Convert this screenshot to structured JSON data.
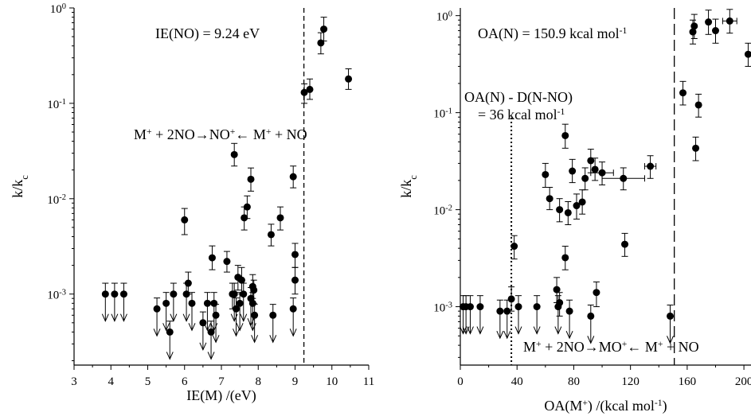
{
  "chart_data": [
    {
      "type": "scatter",
      "xlabel": "IE(M) /(eV)",
      "ylabel": "k/k",
      "ylabel_sub": "c",
      "yscale": "log",
      "xlim": [
        3,
        11
      ],
      "ylim": [
        0.00018,
        1
      ],
      "xticks": [
        3,
        4,
        5,
        6,
        7,
        8,
        9,
        10,
        11
      ],
      "xtick_labels": [
        "3",
        "4",
        "5",
        "6",
        "7",
        "8",
        "9",
        "10",
        "11"
      ],
      "yticks": [
        0.001,
        0.01,
        0.1,
        1
      ],
      "ytick_labels": [
        {
          "base": "10",
          "exp": "-3"
        },
        {
          "base": "10",
          "exp": "-2"
        },
        {
          "base": "10",
          "exp": "-1"
        },
        {
          "base": "10",
          "exp": "0"
        }
      ],
      "vlines": [
        {
          "x": 9.24,
          "style": "dashed"
        }
      ],
      "annotations": {
        "ie_no": "IE(NO) = 9.24 eV",
        "reaction": {
          "parts": [
            "M",
            "+",
            " + 2NO→NO",
            "+",
            "← M",
            "+",
            " + NO"
          ]
        }
      },
      "points": [
        {
          "x": 7.35,
          "y": 0.029,
          "yerr": [
            0.007,
            0.009
          ]
        },
        {
          "x": 7.8,
          "y": 0.016,
          "yerr": [
            0.004,
            0.005
          ]
        },
        {
          "x": 8.95,
          "y": 0.017,
          "yerr": [
            0.004,
            0.005
          ]
        },
        {
          "x": 7.7,
          "y": 0.0082,
          "yerr": [
            0.002,
            0.0025
          ]
        },
        {
          "x": 7.62,
          "y": 0.0063,
          "yerr": [
            0.0016,
            0.0019
          ]
        },
        {
          "x": 8.6,
          "y": 0.0063,
          "yerr": [
            0.0016,
            0.0019
          ]
        },
        {
          "x": 6.0,
          "y": 0.006,
          "yerr": [
            0.0018,
            0.0019
          ]
        },
        {
          "x": 8.35,
          "y": 0.0042,
          "yerr": [
            0.001,
            0.0012
          ]
        },
        {
          "x": 9.0,
          "y": 0.0026,
          "yerr": [
            0.0007,
            0.0008
          ]
        },
        {
          "x": 6.75,
          "y": 0.0024,
          "yerr": [
            0.0006,
            0.0008
          ]
        },
        {
          "x": 7.15,
          "y": 0.0022,
          "yerr": [
            0.0005,
            0.0006
          ]
        },
        {
          "x": 7.45,
          "y": 0.0015,
          "yerr": [
            0.0004,
            0.0005
          ]
        },
        {
          "x": 7.55,
          "y": 0.0014,
          "yerr": [
            0.0004,
            0.0005
          ]
        },
        {
          "x": 9.0,
          "y": 0.0014,
          "yerr": [
            0.0004,
            0.0005
          ]
        },
        {
          "x": 6.1,
          "y": 0.0013,
          "yerr": [
            0.0003,
            0.0004
          ]
        },
        {
          "x": 7.85,
          "y": 0.0012,
          "yerr": [
            0.0003,
            0.0004
          ]
        },
        {
          "x": 7.88,
          "y": 0.0011,
          "yerr": [
            0.0003,
            0.0003
          ]
        },
        {
          "x": 7.3,
          "y": 0.001,
          "yerr": [
            0.0003,
            0.0003
          ]
        },
        {
          "x": 9.25,
          "y": 0.13,
          "yerr": [
            0.03,
            0.03
          ]
        },
        {
          "x": 9.4,
          "y": 0.14,
          "yerr": [
            0.03,
            0.04
          ]
        },
        {
          "x": 9.7,
          "y": 0.43,
          "yerr": [
            0.1,
            0.12
          ]
        },
        {
          "x": 9.78,
          "y": 0.6,
          "yerr": [
            0.15,
            0.2
          ]
        },
        {
          "x": 10.45,
          "y": 0.18,
          "yerr": [
            0.04,
            0.05
          ]
        }
      ],
      "upper_limits": [
        {
          "x": 3.85,
          "y": 0.001
        },
        {
          "x": 4.1,
          "y": 0.001
        },
        {
          "x": 4.35,
          "y": 0.001
        },
        {
          "x": 5.25,
          "y": 0.0007
        },
        {
          "x": 5.5,
          "y": 0.0008
        },
        {
          "x": 5.6,
          "y": 0.0004
        },
        {
          "x": 5.7,
          "y": 0.001
        },
        {
          "x": 6.05,
          "y": 0.001
        },
        {
          "x": 6.2,
          "y": 0.0008
        },
        {
          "x": 6.5,
          "y": 0.0005
        },
        {
          "x": 6.62,
          "y": 0.0008
        },
        {
          "x": 6.72,
          "y": 0.0004
        },
        {
          "x": 6.8,
          "y": 0.0008
        },
        {
          "x": 6.85,
          "y": 0.0006
        },
        {
          "x": 7.35,
          "y": 0.001
        },
        {
          "x": 7.4,
          "y": 0.0007
        },
        {
          "x": 7.5,
          "y": 0.0008
        },
        {
          "x": 7.6,
          "y": 0.001
        },
        {
          "x": 7.8,
          "y": 0.0009
        },
        {
          "x": 7.85,
          "y": 0.0008
        },
        {
          "x": 7.9,
          "y": 0.0006
        },
        {
          "x": 8.4,
          "y": 0.0006
        },
        {
          "x": 8.95,
          "y": 0.0007
        }
      ]
    },
    {
      "type": "scatter",
      "xlabel": "OA(M",
      "xlabel_parts": [
        "OA(M",
        "+",
        ") /(kcal mol",
        "-1",
        ")"
      ],
      "ylabel": "k/k",
      "ylabel_sub": "c",
      "yscale": "log",
      "xlim": [
        0,
        205
      ],
      "ylim": [
        0.00025,
        1.2
      ],
      "xticks": [
        0,
        40,
        80,
        120,
        160,
        200
      ],
      "xtick_labels": [
        "0",
        "40",
        "80",
        "120",
        "160",
        "200"
      ],
      "yticks": [
        0.001,
        0.01,
        0.1,
        1
      ],
      "ytick_labels": [
        {
          "base": "10",
          "exp": "-3"
        },
        {
          "base": "10",
          "exp": "-2"
        },
        {
          "base": "10",
          "exp": "-1"
        },
        {
          "base": "10",
          "exp": "0"
        }
      ],
      "vlines": [
        {
          "x": 150.9,
          "style": "long-dashed"
        },
        {
          "x": 36,
          "style": "dotted"
        }
      ],
      "annotations": {
        "oa_n": {
          "parts": [
            "OA(N) = 150.9 kcal mol",
            "-1"
          ]
        },
        "diff_line1": "OA(N) - D(N-NO)",
        "diff_line2": {
          "parts": [
            "= 36 kcal mol",
            "-1"
          ]
        },
        "reaction": {
          "parts": [
            "M",
            "+",
            " + 2NO→MO",
            "+",
            "← M",
            "+",
            " + NO"
          ]
        }
      },
      "points": [
        {
          "x": 38,
          "y": 0.0042,
          "yerr": [
            0.0011,
            0.0012
          ]
        },
        {
          "x": 60,
          "y": 0.023,
          "yerr": [
            0.006,
            0.007
          ]
        },
        {
          "x": 63,
          "y": 0.013,
          "yerr": [
            0.003,
            0.004
          ]
        },
        {
          "x": 70,
          "y": 0.01,
          "yerr": [
            0.0025,
            0.003
          ]
        },
        {
          "x": 74,
          "y": 0.058,
          "yerr": [
            0.015,
            0.018
          ]
        },
        {
          "x": 76,
          "y": 0.0093,
          "yerr": [
            0.0023,
            0.0028
          ]
        },
        {
          "x": 79,
          "y": 0.025,
          "yerr": [
            0.006,
            0.008
          ]
        },
        {
          "x": 82,
          "y": 0.011,
          "yerr": [
            0.003,
            0.0035
          ]
        },
        {
          "x": 86,
          "y": 0.012,
          "yerr": [
            0.003,
            0.004
          ]
        },
        {
          "x": 88,
          "y": 0.021,
          "yerr": [
            0.005,
            0.006
          ]
        },
        {
          "x": 92,
          "y": 0.032,
          "yerr": [
            0.008,
            0.01
          ]
        },
        {
          "x": 95,
          "y": 0.026,
          "yerr": [
            0.006,
            0.008
          ]
        },
        {
          "x": 100,
          "y": 0.024,
          "yerr": [
            0.006,
            0.007
          ],
          "xerr": [
            8,
            8
          ]
        },
        {
          "x": 115,
          "y": 0.021,
          "yerr": [
            0.005,
            0.006
          ],
          "xerr": [
            15,
            15
          ]
        },
        {
          "x": 116,
          "y": 0.0044,
          "yerr": [
            0.0011,
            0.0013
          ]
        },
        {
          "x": 134,
          "y": 0.028,
          "yerr": [
            0.007,
            0.008
          ],
          "xerr": [
            4,
            4
          ]
        },
        {
          "x": 68,
          "y": 0.0015,
          "yerr": [
            0.0004,
            0.0005
          ]
        },
        {
          "x": 70,
          "y": 0.0011,
          "yerr": [
            0.0003,
            0.0003
          ]
        },
        {
          "x": 74,
          "y": 0.0032,
          "yerr": [
            0.0008,
            0.001
          ]
        },
        {
          "x": 96,
          "y": 0.0014,
          "yerr": [
            0.0004,
            0.0004
          ]
        },
        {
          "x": 36,
          "y": 0.0012,
          "yerr": [
            0.0003,
            0.0004
          ]
        },
        {
          "x": 157,
          "y": 0.16,
          "yerr": [
            0.04,
            0.05
          ]
        },
        {
          "x": 164,
          "y": 0.68,
          "yerr": [
            0.17,
            0.22
          ]
        },
        {
          "x": 165,
          "y": 0.78,
          "yerr": [
            0.2,
            0.25
          ]
        },
        {
          "x": 166,
          "y": 0.043,
          "yerr": [
            0.011,
            0.013
          ]
        },
        {
          "x": 168,
          "y": 0.12,
          "yerr": [
            0.03,
            0.035
          ]
        },
        {
          "x": 175,
          "y": 0.86,
          "yerr": [
            0.22,
            0.28
          ]
        },
        {
          "x": 180,
          "y": 0.7,
          "yerr": [
            0.18,
            0.22
          ]
        },
        {
          "x": 190,
          "y": 0.88,
          "yerr": [
            0.22,
            0.28
          ],
          "xerr": [
            5,
            5
          ]
        },
        {
          "x": 203,
          "y": 0.4,
          "yerr": [
            0.1,
            0.12
          ]
        }
      ],
      "upper_limits": [
        {
          "x": 2,
          "y": 0.001
        },
        {
          "x": 4,
          "y": 0.001
        },
        {
          "x": 7,
          "y": 0.001
        },
        {
          "x": 14,
          "y": 0.001
        },
        {
          "x": 28,
          "y": 0.0009
        },
        {
          "x": 33,
          "y": 0.0009
        },
        {
          "x": 41,
          "y": 0.001
        },
        {
          "x": 54,
          "y": 0.001
        },
        {
          "x": 69,
          "y": 0.001
        },
        {
          "x": 77,
          "y": 0.0009
        },
        {
          "x": 92,
          "y": 0.0008
        },
        {
          "x": 148,
          "y": 0.0008
        }
      ]
    }
  ]
}
